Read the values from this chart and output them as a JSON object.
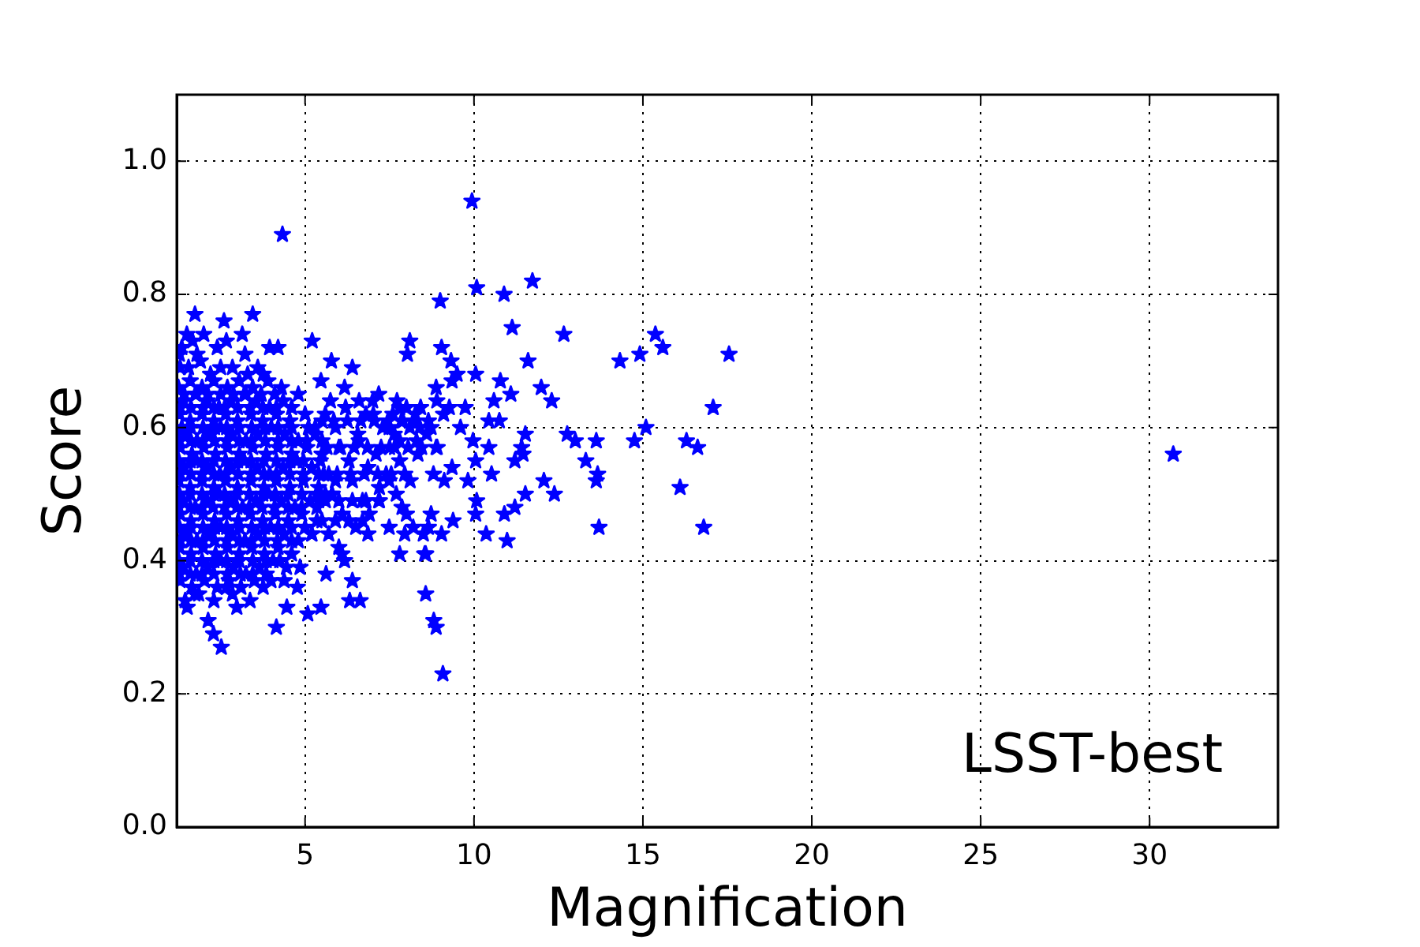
{
  "chart_data": {
    "type": "scatter",
    "xlabel": "Magnification",
    "ylabel": "Score",
    "color": "#0000ff",
    "marker": "star",
    "grid": true,
    "xlim": [
      1.2,
      33.8
    ],
    "ylim": [
      0,
      1.1
    ],
    "xticks": [
      5,
      10,
      15,
      20,
      25,
      30
    ],
    "yticks": [
      {
        "value": 0,
        "label": "0.0"
      },
      0.2,
      0.4,
      0.6,
      0.8,
      {
        "value": 1,
        "label": "1.0"
      }
    ],
    "annotations": [
      "LSST-best"
    ],
    "x": [
      1.3,
      1.55,
      1.9,
      2.2,
      2.5,
      2.85,
      3.3,
      3.6,
      1.35,
      1.5,
      1.28,
      2.0,
      2.4,
      1.8,
      1.25,
      1.6,
      1.95,
      2.3,
      2.7,
      3.05,
      3.45,
      3.9,
      4.3,
      1.4,
      1.75,
      2.1,
      2.45,
      2.8,
      3.2,
      3.55,
      3.95,
      4.35,
      4.8,
      1.28,
      1.6,
      1.95,
      2.3,
      2.65,
      3.0,
      3.4,
      3.75,
      4.15,
      4.55,
      5.0,
      1.45,
      1.8,
      2.15,
      2.5,
      2.85,
      3.25,
      3.6,
      4.0,
      4.4,
      4.8,
      5.3,
      1.3,
      1.65,
      2.0,
      2.35,
      2.7,
      3.05,
      3.45,
      3.85,
      4.2,
      4.6,
      5.05,
      5.5,
      1.42,
      1.78,
      2.12,
      2.48,
      2.82,
      3.2,
      3.58,
      3.95,
      4.35,
      4.75,
      5.2,
      5.7,
      1.26,
      1.6,
      1.95,
      2.3,
      2.65,
      3.0,
      3.4,
      3.78,
      4.15,
      4.55,
      4.95,
      5.4,
      5.9,
      1.4,
      1.75,
      2.1,
      2.45,
      2.8,
      3.15,
      3.55,
      3.92,
      4.3,
      4.7,
      5.15,
      5.6,
      1.3,
      1.62,
      1.98,
      2.32,
      2.68,
      3.02,
      3.38,
      3.75,
      4.12,
      4.5,
      4.9,
      5.35,
      1.45,
      1.8,
      2.15,
      2.5,
      2.85,
      3.22,
      3.6,
      3.98,
      4.38,
      4.8,
      5.2,
      1.28,
      1.62,
      1.98,
      2.35,
      2.7,
      3.05,
      3.42,
      3.8,
      4.2,
      4.6,
      1.4,
      1.78,
      2.12,
      2.5,
      2.88,
      3.25,
      3.65,
      4.05,
      4.45,
      1.3,
      1.65,
      2.02,
      2.4,
      2.75,
      3.1,
      3.5,
      1.45,
      1.85,
      2.3,
      2.85,
      4.33,
      1.74,
      2.6,
      3.45,
      3.14,
      1.67,
      2.67,
      3.95,
      4.2,
      5.21,
      3.22,
      5.78,
      6.4,
      3.76,
      5.47,
      6.17,
      7.18,
      7.72,
      8.42,
      8.88,
      9.35,
      7.02,
      7.49,
      8.26,
      8.73,
      6.56,
      7.64,
      8.88,
      8.34,
      7.8,
      6.86,
      8.11,
      9.12,
      7.49,
      7.18,
      7.87,
      8.73,
      7.49,
      7.95,
      8.57,
      6.86,
      7.8,
      6.09,
      5.62,
      6.4,
      6.17,
      6.63,
      6.32,
      5.47,
      5.08,
      4.46,
      4.15,
      4.77,
      4.38,
      4.85,
      2.52,
      2.29,
      2.13,
      1.51,
      2.98,
      3.37,
      3.76,
      3.99,
      2.67,
      1.74,
      9.94,
      11.73,
      10.08,
      10.89,
      9.0,
      11.13,
      12.66,
      15.37,
      15.59,
      17.55,
      14.91,
      14.32,
      11.6,
      8.1,
      8.03,
      9.04,
      9.32,
      9.5,
      10.05,
      10.78,
      11.99,
      12.3,
      11.09,
      10.59,
      9.27,
      9.74,
      17.08,
      10.44,
      10.75,
      15.09,
      11.52,
      12.76,
      13.0,
      13.62,
      14.75,
      16.29,
      16.62,
      9.97,
      8.91,
      11.41,
      10.44,
      13.31,
      11.45,
      11.21,
      10.05,
      9.35,
      13.66,
      13.62,
      16.1,
      12.07,
      12.38,
      11.52,
      10.52,
      9.82,
      10.08,
      11.21,
      10.9,
      10.05,
      9.38,
      8.65,
      9.04,
      10.36,
      10.98,
      16.8,
      13.7,
      8.54,
      8.57,
      8.81,
      8.88,
      9.08,
      30.7,
      5.6,
      5.9,
      6.2,
      6.0,
      6.3,
      6.6,
      5.8,
      6.1,
      6.4,
      6.7,
      5.7,
      6.5,
      6.9,
      7.1,
      7.3,
      7.6,
      7.9,
      8.1,
      8.4,
      8.6,
      8.3,
      7.8,
      7.4,
      7.2,
      7.7,
      8.0,
      8.2,
      8.5,
      9.1,
      9.6,
      8.9,
      7.0,
      6.8,
      7.5,
      8.8,
      5.5,
      5.4,
      6.0,
      5.2,
      5.3,
      5.75,
      6.6,
      7.8,
      8.0,
      1.42,
      1.78,
      2.12,
      2.5,
      2.88,
      3.25,
      3.7,
      4.1,
      1.3,
      1.62,
      1.98,
      2.3,
      2.62,
      3.0,
      3.38,
      3.75,
      4.15,
      4.6,
      1.35,
      1.62,
      1.98,
      2.32,
      2.68,
      3.05,
      3.42,
      3.8,
      4.2,
      4.6,
      5.1,
      1.28,
      1.62,
      1.98,
      2.32,
      2.68,
      3.05,
      3.42,
      3.82,
      4.2,
      4.6,
      5.05,
      1.26,
      1.6,
      1.95,
      2.3,
      2.65,
      3.0,
      3.4,
      3.78,
      4.15,
      4.55,
      4.95,
      5.45,
      1.3,
      1.62,
      1.95,
      2.3,
      2.65,
      3.02,
      3.4,
      3.78,
      4.15,
      4.55,
      4.95,
      5.4,
      1.28,
      1.6,
      1.95,
      2.3,
      2.62,
      2.98,
      3.35,
      3.75,
      4.12,
      4.5,
      4.9,
      5.35,
      5.8,
      1.26,
      1.6,
      1.95,
      2.28,
      2.62,
      2.98,
      3.35,
      3.72,
      4.1,
      4.5,
      4.9,
      5.35,
      1.28,
      1.62,
      1.98,
      2.32,
      2.68,
      3.05,
      3.42,
      3.8,
      4.2,
      4.6,
      5.0,
      1.3,
      1.62,
      1.98,
      2.32,
      2.68,
      3.05,
      3.42,
      3.8,
      4.18,
      4.6,
      1.26,
      1.6,
      1.95,
      2.3,
      2.68,
      3.05,
      3.45,
      3.85,
      4.25,
      1.28,
      1.6,
      1.95,
      2.3,
      2.7,
      3.08,
      3.45,
      3.85,
      5.5,
      5.85,
      6.25,
      6.65,
      7.05,
      7.45,
      7.85,
      8.25,
      8.65,
      5.65,
      6.05,
      6.45,
      6.85,
      7.25,
      7.65,
      8.05,
      8.45,
      5.55,
      5.95,
      6.35,
      6.75,
      7.15,
      7.55,
      7.95,
      5.6,
      6.0,
      6.4,
      6.8,
      7.2,
      5.5,
      5.9,
      6.3,
      6.7
    ],
    "values": [
      0.69,
      0.69,
      0.7,
      0.68,
      0.69,
      0.69,
      0.68,
      0.69,
      0.72,
      0.74,
      0.71,
      0.74,
      0.72,
      0.71,
      0.66,
      0.67,
      0.66,
      0.67,
      0.66,
      0.67,
      0.66,
      0.67,
      0.66,
      0.64,
      0.65,
      0.64,
      0.63,
      0.64,
      0.65,
      0.64,
      0.63,
      0.64,
      0.65,
      0.62,
      0.61,
      0.62,
      0.61,
      0.62,
      0.61,
      0.62,
      0.61,
      0.62,
      0.61,
      0.62,
      0.59,
      0.58,
      0.59,
      0.6,
      0.59,
      0.58,
      0.59,
      0.6,
      0.59,
      0.58,
      0.59,
      0.57,
      0.56,
      0.57,
      0.56,
      0.57,
      0.56,
      0.57,
      0.56,
      0.57,
      0.56,
      0.57,
      0.56,
      0.54,
      0.55,
      0.54,
      0.53,
      0.54,
      0.55,
      0.54,
      0.53,
      0.54,
      0.55,
      0.54,
      0.53,
      0.52,
      0.51,
      0.52,
      0.51,
      0.52,
      0.51,
      0.52,
      0.51,
      0.52,
      0.51,
      0.52,
      0.51,
      0.52,
      0.49,
      0.48,
      0.49,
      0.5,
      0.49,
      0.48,
      0.49,
      0.5,
      0.49,
      0.48,
      0.49,
      0.5,
      0.47,
      0.46,
      0.47,
      0.46,
      0.47,
      0.46,
      0.47,
      0.46,
      0.47,
      0.46,
      0.47,
      0.46,
      0.44,
      0.43,
      0.44,
      0.45,
      0.44,
      0.43,
      0.44,
      0.45,
      0.44,
      0.43,
      0.44,
      0.42,
      0.41,
      0.42,
      0.41,
      0.42,
      0.41,
      0.42,
      0.41,
      0.42,
      0.41,
      0.39,
      0.38,
      0.39,
      0.4,
      0.39,
      0.38,
      0.39,
      0.4,
      0.39,
      0.37,
      0.36,
      0.37,
      0.36,
      0.37,
      0.36,
      0.37,
      0.34,
      0.35,
      0.34,
      0.35,
      0.89,
      0.77,
      0.76,
      0.77,
      0.74,
      0.73,
      0.73,
      0.72,
      0.72,
      0.73,
      0.71,
      0.7,
      0.69,
      0.68,
      0.67,
      0.66,
      0.65,
      0.64,
      0.63,
      0.66,
      0.67,
      0.62,
      0.6,
      0.62,
      0.6,
      0.59,
      0.59,
      0.57,
      0.56,
      0.55,
      0.54,
      0.52,
      0.52,
      0.52,
      0.49,
      0.48,
      0.47,
      0.45,
      0.44,
      0.41,
      0.44,
      0.41,
      0.41,
      0.38,
      0.37,
      0.4,
      0.34,
      0.34,
      0.33,
      0.32,
      0.33,
      0.3,
      0.36,
      0.37,
      0.39,
      0.27,
      0.29,
      0.31,
      0.33,
      0.33,
      0.34,
      0.36,
      0.37,
      0.36,
      0.35,
      0.94,
      0.82,
      0.81,
      0.8,
      0.79,
      0.75,
      0.74,
      0.74,
      0.72,
      0.71,
      0.71,
      0.7,
      0.7,
      0.73,
      0.71,
      0.72,
      0.7,
      0.68,
      0.68,
      0.67,
      0.66,
      0.64,
      0.65,
      0.64,
      0.63,
      0.63,
      0.63,
      0.61,
      0.61,
      0.6,
      0.59,
      0.59,
      0.58,
      0.58,
      0.58,
      0.58,
      0.57,
      0.58,
      0.57,
      0.57,
      0.57,
      0.55,
      0.56,
      0.55,
      0.55,
      0.54,
      0.53,
      0.52,
      0.51,
      0.52,
      0.5,
      0.5,
      0.53,
      0.52,
      0.49,
      0.48,
      0.47,
      0.47,
      0.46,
      0.45,
      0.44,
      0.44,
      0.43,
      0.45,
      0.45,
      0.41,
      0.35,
      0.31,
      0.3,
      0.23,
      0.56,
      0.62,
      0.6,
      0.63,
      0.57,
      0.55,
      0.58,
      0.5,
      0.47,
      0.52,
      0.49,
      0.44,
      0.45,
      0.47,
      0.56,
      0.6,
      0.62,
      0.61,
      0.6,
      0.6,
      0.59,
      0.58,
      0.58,
      0.53,
      0.51,
      0.5,
      0.47,
      0.45,
      0.44,
      0.62,
      0.6,
      0.64,
      0.64,
      0.62,
      0.57,
      0.53,
      0.58,
      0.49,
      0.42,
      0.44,
      0.6,
      0.64,
      0.64,
      0.63,
      0.63,
      0.65,
      0.65,
      0.65,
      0.65,
      0.65,
      0.65,
      0.65,
      0.65,
      0.63,
      0.63,
      0.63,
      0.63,
      0.63,
      0.63,
      0.63,
      0.63,
      0.63,
      0.63,
      0.6,
      0.6,
      0.6,
      0.6,
      0.6,
      0.6,
      0.6,
      0.6,
      0.6,
      0.6,
      0.6,
      0.58,
      0.58,
      0.58,
      0.58,
      0.58,
      0.58,
      0.58,
      0.58,
      0.58,
      0.58,
      0.58,
      0.55,
      0.55,
      0.55,
      0.55,
      0.55,
      0.55,
      0.55,
      0.55,
      0.55,
      0.55,
      0.55,
      0.55,
      0.53,
      0.53,
      0.53,
      0.53,
      0.53,
      0.53,
      0.53,
      0.53,
      0.53,
      0.53,
      0.53,
      0.53,
      0.5,
      0.5,
      0.5,
      0.5,
      0.5,
      0.5,
      0.5,
      0.5,
      0.5,
      0.5,
      0.5,
      0.5,
      0.5,
      0.48,
      0.48,
      0.48,
      0.48,
      0.48,
      0.48,
      0.48,
      0.48,
      0.48,
      0.48,
      0.48,
      0.48,
      0.45,
      0.45,
      0.45,
      0.45,
      0.45,
      0.45,
      0.45,
      0.45,
      0.45,
      0.45,
      0.45,
      0.43,
      0.43,
      0.43,
      0.43,
      0.43,
      0.43,
      0.43,
      0.43,
      0.43,
      0.43,
      0.4,
      0.4,
      0.4,
      0.4,
      0.4,
      0.4,
      0.4,
      0.4,
      0.4,
      0.38,
      0.38,
      0.38,
      0.38,
      0.38,
      0.38,
      0.38,
      0.38,
      0.61,
      0.61,
      0.61,
      0.61,
      0.61,
      0.61,
      0.61,
      0.61,
      0.61,
      0.57,
      0.57,
      0.57,
      0.57,
      0.57,
      0.57,
      0.57,
      0.57,
      0.53,
      0.53,
      0.53,
      0.53,
      0.53,
      0.53,
      0.53,
      0.49,
      0.49,
      0.49,
      0.49,
      0.49,
      0.46,
      0.46,
      0.46,
      0.46
    ]
  }
}
